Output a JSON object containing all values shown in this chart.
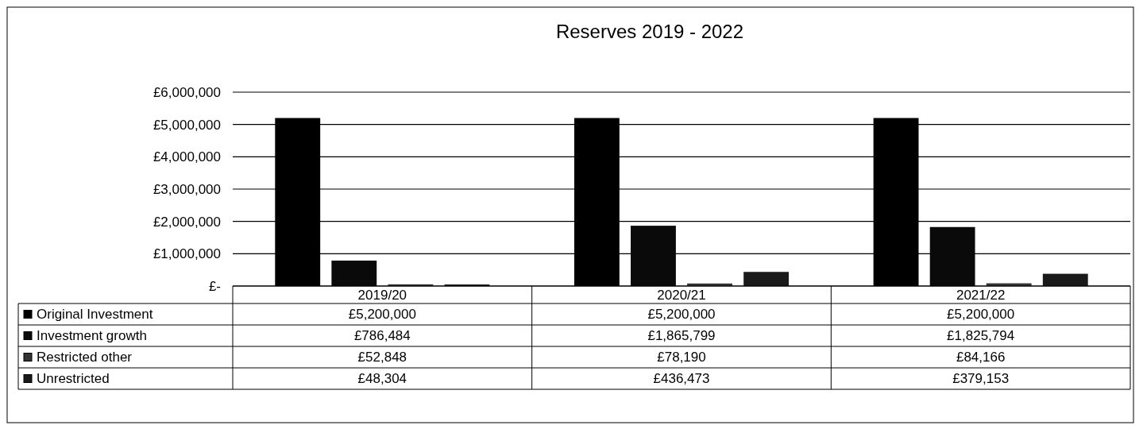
{
  "chart_data": {
    "type": "bar",
    "title": "Reserves 2019 - 2022",
    "categories": [
      "2019/20",
      "2020/21",
      "2021/22"
    ],
    "series": [
      {
        "name": "Original Investment",
        "color": "#000000",
        "values": [
          5200000,
          5200000,
          5200000
        ],
        "value_labels": [
          "£5,200,000",
          "£5,200,000",
          "£5,200,000"
        ]
      },
      {
        "name": "Investment growth",
        "color": "#0a0a0a",
        "values": [
          786484,
          1865799,
          1825794
        ],
        "value_labels": [
          "£786,484",
          "£1,865,799",
          "£1,825,794"
        ]
      },
      {
        "name": "Restricted other",
        "color": "#333333",
        "values": [
          52848,
          78190,
          84166
        ],
        "value_labels": [
          "£52,848",
          "£78,190",
          "£84,166"
        ]
      },
      {
        "name": "Unrestricted",
        "color": "#1a1a1a",
        "values": [
          48304,
          436473,
          379153
        ],
        "value_labels": [
          "£48,304",
          "£436,473",
          "£379,153"
        ]
      }
    ],
    "ylim": [
      0,
      6000000
    ],
    "yticks": [
      {
        "value": 0,
        "label": "£-"
      },
      {
        "value": 1000000,
        "label": "£1,000,000"
      },
      {
        "value": 2000000,
        "label": "£2,000,000"
      },
      {
        "value": 3000000,
        "label": "£3,000,000"
      },
      {
        "value": 4000000,
        "label": "£4,000,000"
      },
      {
        "value": 5000000,
        "label": "£5,000,000"
      },
      {
        "value": 6000000,
        "label": "£6,000,000"
      }
    ],
    "grid": "y",
    "legend": "bottom"
  }
}
